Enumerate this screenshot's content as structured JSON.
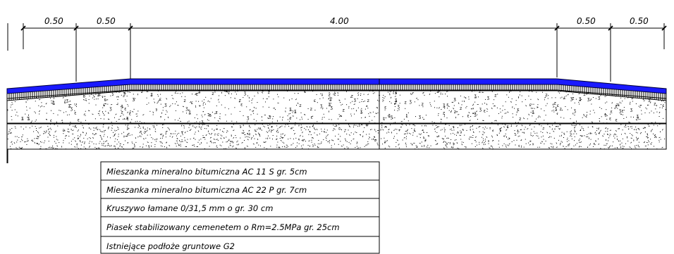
{
  "dimensions": {
    "left_outer": "0.50",
    "left_inner": "0.50",
    "carriageway": "4.00",
    "right_inner": "0.50",
    "right_outer": "0.50"
  },
  "legend": [
    "Mieszanka mineralno bitumiczna AC 11 S gr. 5cm",
    "Mieszanka mineralno bitumiczna AC 22 P gr. 7cm",
    "Kruszywo łamane 0/31,5 mm o gr. 30 cm",
    "Piasek stabilizowany cemenetem o Rm=2.5MPa gr. 25cm",
    "Istniejące podłoże gruntowe G2"
  ],
  "colors": {
    "wearing_course": "#1a1aff",
    "line": "#000000"
  }
}
